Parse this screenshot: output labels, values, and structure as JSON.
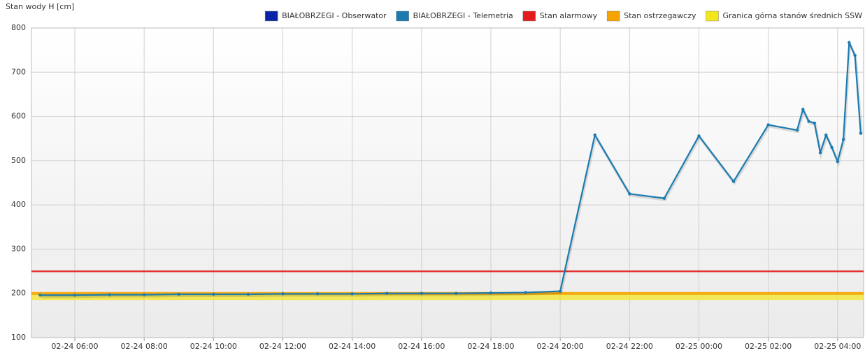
{
  "chart_data": {
    "type": "line",
    "y_label": "Stan wody H [cm]",
    "legend": "top right",
    "grid": true,
    "x": [
      "02-24 05:00",
      "02-24 06:00",
      "02-24 07:00",
      "02-24 08:00",
      "02-24 09:00",
      "02-24 10:00",
      "02-24 11:00",
      "02-24 12:00",
      "02-24 13:00",
      "02-24 14:00",
      "02-24 15:00",
      "02-24 16:00",
      "02-24 17:00",
      "02-24 18:00",
      "02-24 19:00",
      "02-24 20:00",
      "02-24 21:00",
      "02-24 22:00",
      "02-24 23:00",
      "02-25 00:00",
      "02-25 01:00",
      "02-25 02:00",
      "02-25 02:50",
      "02-25 03:00",
      "02-25 03:10",
      "02-25 03:20",
      "02-25 03:30",
      "02-25 03:40",
      "02-25 03:50",
      "02-25 04:00",
      "02-25 04:10",
      "02-25 04:20",
      "02-25 04:30",
      "02-25 04:40"
    ],
    "series": [
      {
        "name": "BIAŁOBRZEGI - Obserwator",
        "color": "#0b24a6",
        "values": [
          null,
          null,
          null,
          null,
          null,
          null,
          null,
          null,
          null,
          null,
          null,
          null,
          null,
          null,
          null,
          null,
          null,
          null,
          null,
          null,
          null,
          null,
          null,
          null,
          null,
          null,
          null,
          null,
          null,
          null,
          null,
          null,
          null,
          null
        ]
      },
      {
        "name": "BIAŁOBRZEGI - Telemetria",
        "color": "#1b7bb0",
        "values": [
          196,
          196,
          197,
          197,
          198,
          198,
          198,
          199,
          199,
          199,
          200,
          200,
          200,
          201,
          202,
          205,
          558,
          425,
          415,
          556,
          453,
          581,
          569,
          616,
          589,
          585,
          518,
          558,
          530,
          498,
          548,
          767,
          738,
          562
        ]
      }
    ],
    "thresholds": [
      {
        "name": "Stan alarmowy",
        "color": "#e31b1b",
        "value": 250
      },
      {
        "name": "Stan ostrzegawczy",
        "color": "#f5a300",
        "value": 200
      },
      {
        "name": "Granica górna stanów średnich SSW",
        "color": "#f3e61a",
        "value": 192
      }
    ],
    "xlim": [
      "02-24 04:45",
      "02-25 04:45"
    ],
    "xticks": [
      "02-24 06:00",
      "02-24 08:00",
      "02-24 10:00",
      "02-24 12:00",
      "02-24 14:00",
      "02-24 16:00",
      "02-24 18:00",
      "02-24 20:00",
      "02-24 22:00",
      "02-25 00:00",
      "02-25 02:00",
      "02-25 04:00"
    ],
    "ylim": [
      100,
      800
    ],
    "yticks": [
      100,
      200,
      300,
      400,
      500,
      600,
      700,
      800
    ]
  }
}
